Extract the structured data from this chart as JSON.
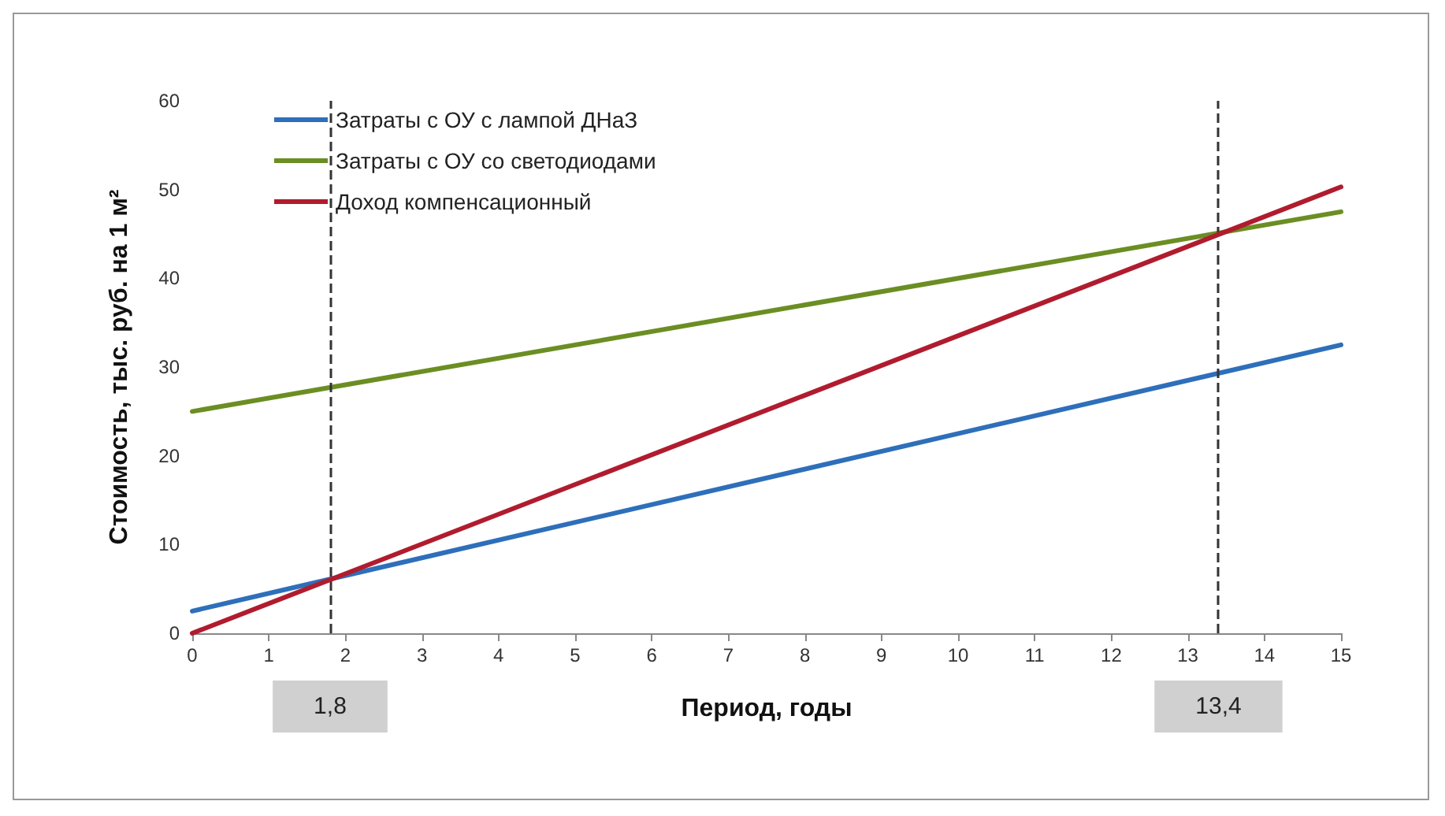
{
  "chart_data": {
    "type": "line",
    "xlabel": "Период, годы",
    "ylabel": "Стоимость, тыс. руб. на 1 м²",
    "x": [
      0,
      15
    ],
    "series": [
      {
        "name": "Затраты с ОУ с лампой ДНаЗ",
        "color": "#2e6fba",
        "values": [
          2.5,
          32.5
        ]
      },
      {
        "name": "Затраты с ОУ со светодиодами",
        "color": "#6b8e23",
        "values": [
          25,
          47.5
        ]
      },
      {
        "name": "Доход компенсационный",
        "color": "#b01c2e",
        "values": [
          0,
          50.3
        ]
      }
    ],
    "xlim": [
      0,
      15
    ],
    "xticks": [
      0,
      1,
      2,
      3,
      4,
      5,
      6,
      7,
      8,
      9,
      10,
      11,
      12,
      13,
      14,
      15
    ],
    "ylim": [
      0,
      60
    ],
    "yticks": [
      0,
      10,
      20,
      30,
      40,
      50,
      60
    ],
    "ref_lines": [
      {
        "axis": "x",
        "value": 1.8,
        "label": "1,8",
        "line_style": "dashed"
      },
      {
        "axis": "x",
        "value": 13.4,
        "label": "13,4",
        "line_style": "dashed"
      }
    ],
    "grid": false,
    "legend": "top left",
    "marker": "none",
    "line_style": "solid"
  }
}
